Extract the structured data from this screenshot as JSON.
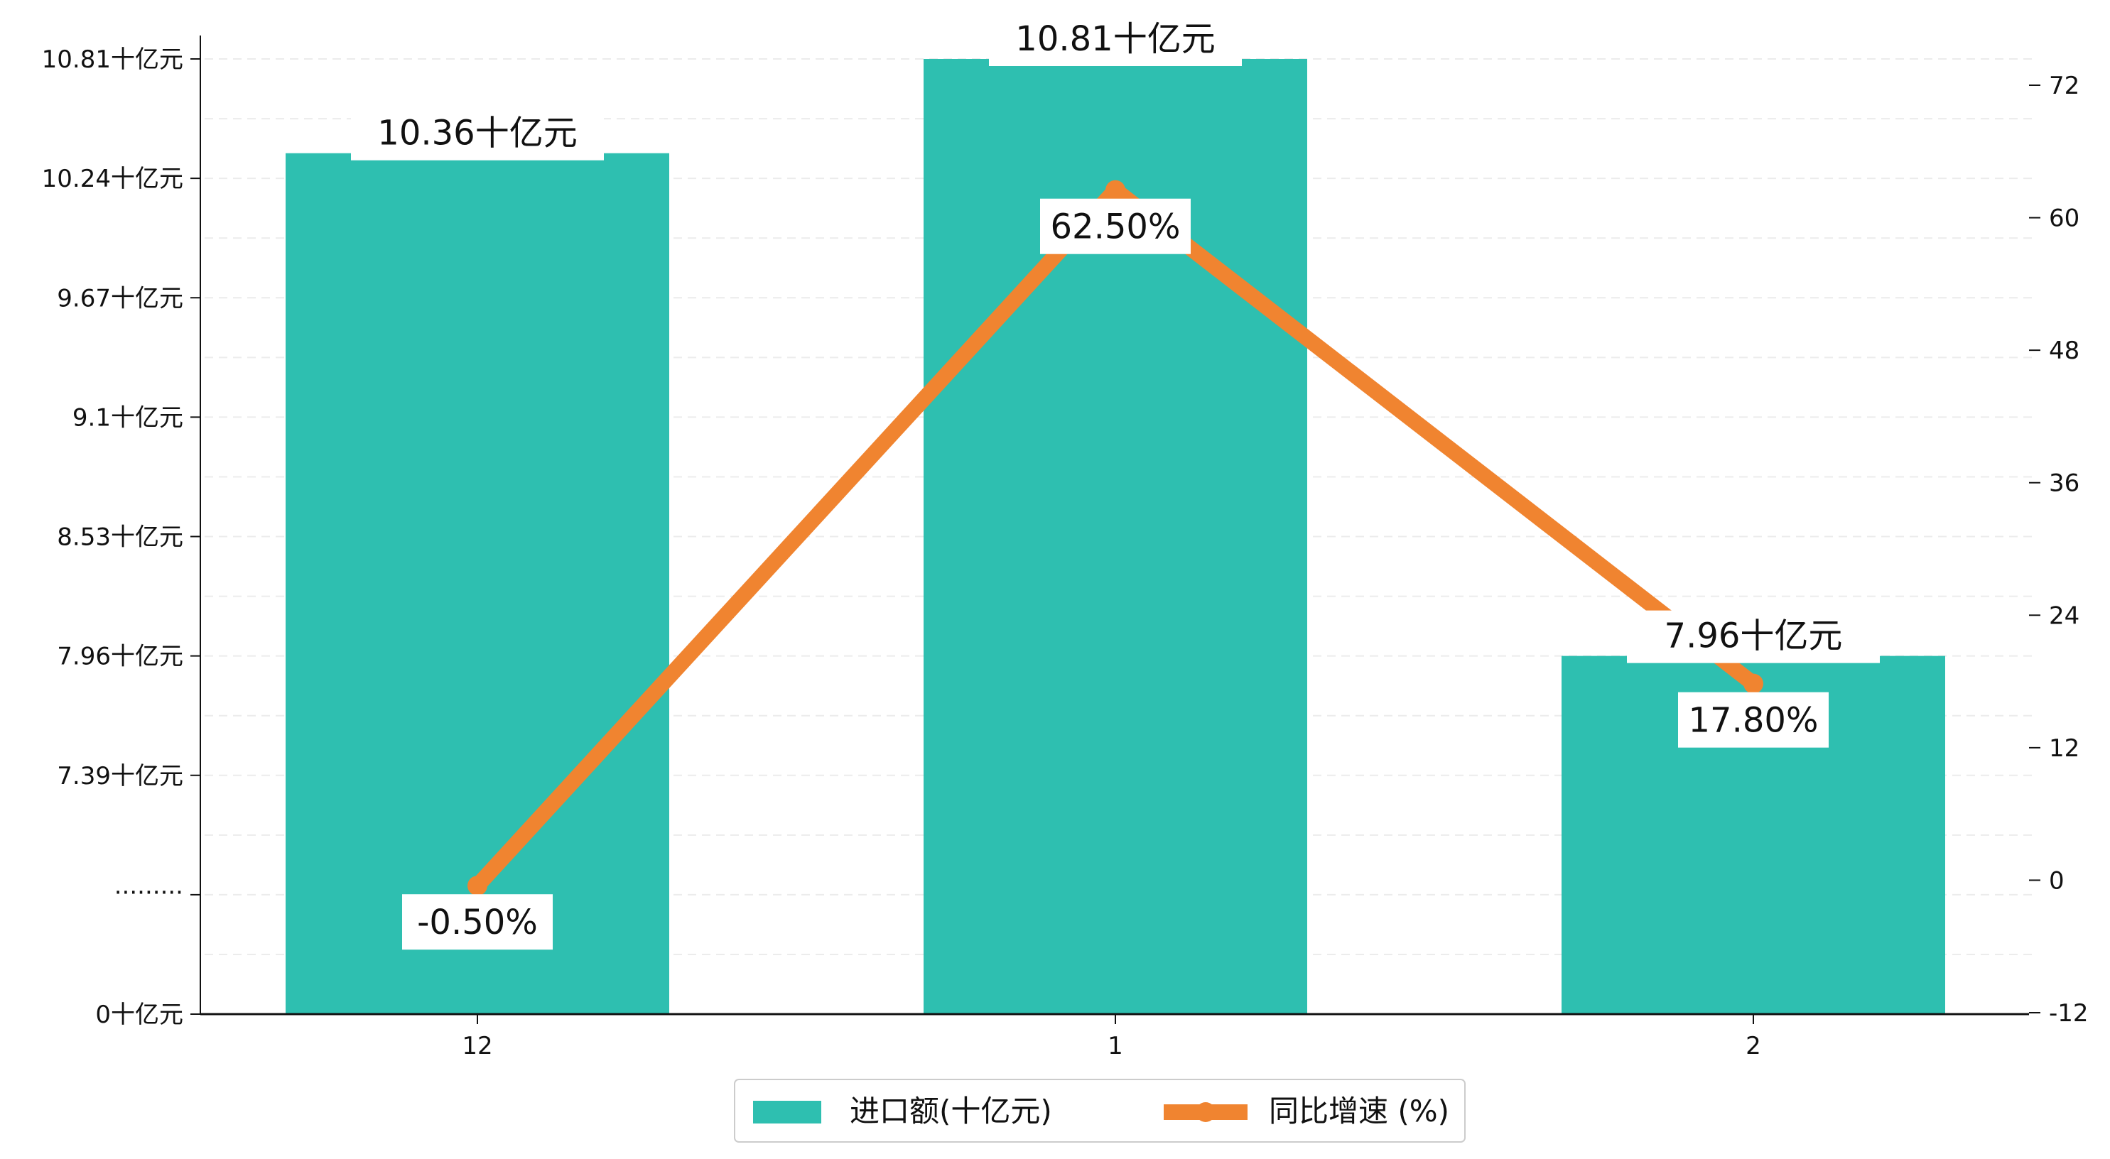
{
  "chart_data": {
    "type": "bar",
    "categories": [
      "12",
      "1",
      "2"
    ],
    "series": [
      {
        "name": "进口额(十亿元)",
        "type": "bar",
        "axis": "left",
        "values": [
          10.36,
          10.81,
          7.96
        ],
        "labels": [
          "10.36十亿元",
          "10.81十亿元",
          "7.96十亿元"
        ],
        "color": "#2ebfb0"
      },
      {
        "name": "同比增速 (%)",
        "type": "line",
        "axis": "right",
        "values": [
          -0.5,
          62.5,
          17.8
        ],
        "labels": [
          "-0.50%",
          "62.50%",
          "17.80%"
        ],
        "color": "#f08430"
      }
    ],
    "left_axis": {
      "scale": "broken",
      "break_label": "·········",
      "ticks": [
        {
          "value": 0,
          "label": "0十亿元"
        },
        {
          "value": 7.39,
          "label": "7.39十亿元"
        },
        {
          "value": 7.96,
          "label": "7.96十亿元"
        },
        {
          "value": 8.53,
          "label": "8.53十亿元"
        },
        {
          "value": 9.1,
          "label": "9.1十亿元"
        },
        {
          "value": 9.67,
          "label": "9.67十亿元"
        },
        {
          "value": 10.24,
          "label": "10.24十亿元"
        },
        {
          "value": 10.81,
          "label": "10.81十亿元"
        }
      ]
    },
    "right_axis": {
      "ylim": [
        -12,
        76
      ],
      "ticks": [
        -12,
        0,
        12,
        24,
        36,
        48,
        60,
        72
      ]
    },
    "grid": true,
    "legend_position": "bottom-center"
  }
}
